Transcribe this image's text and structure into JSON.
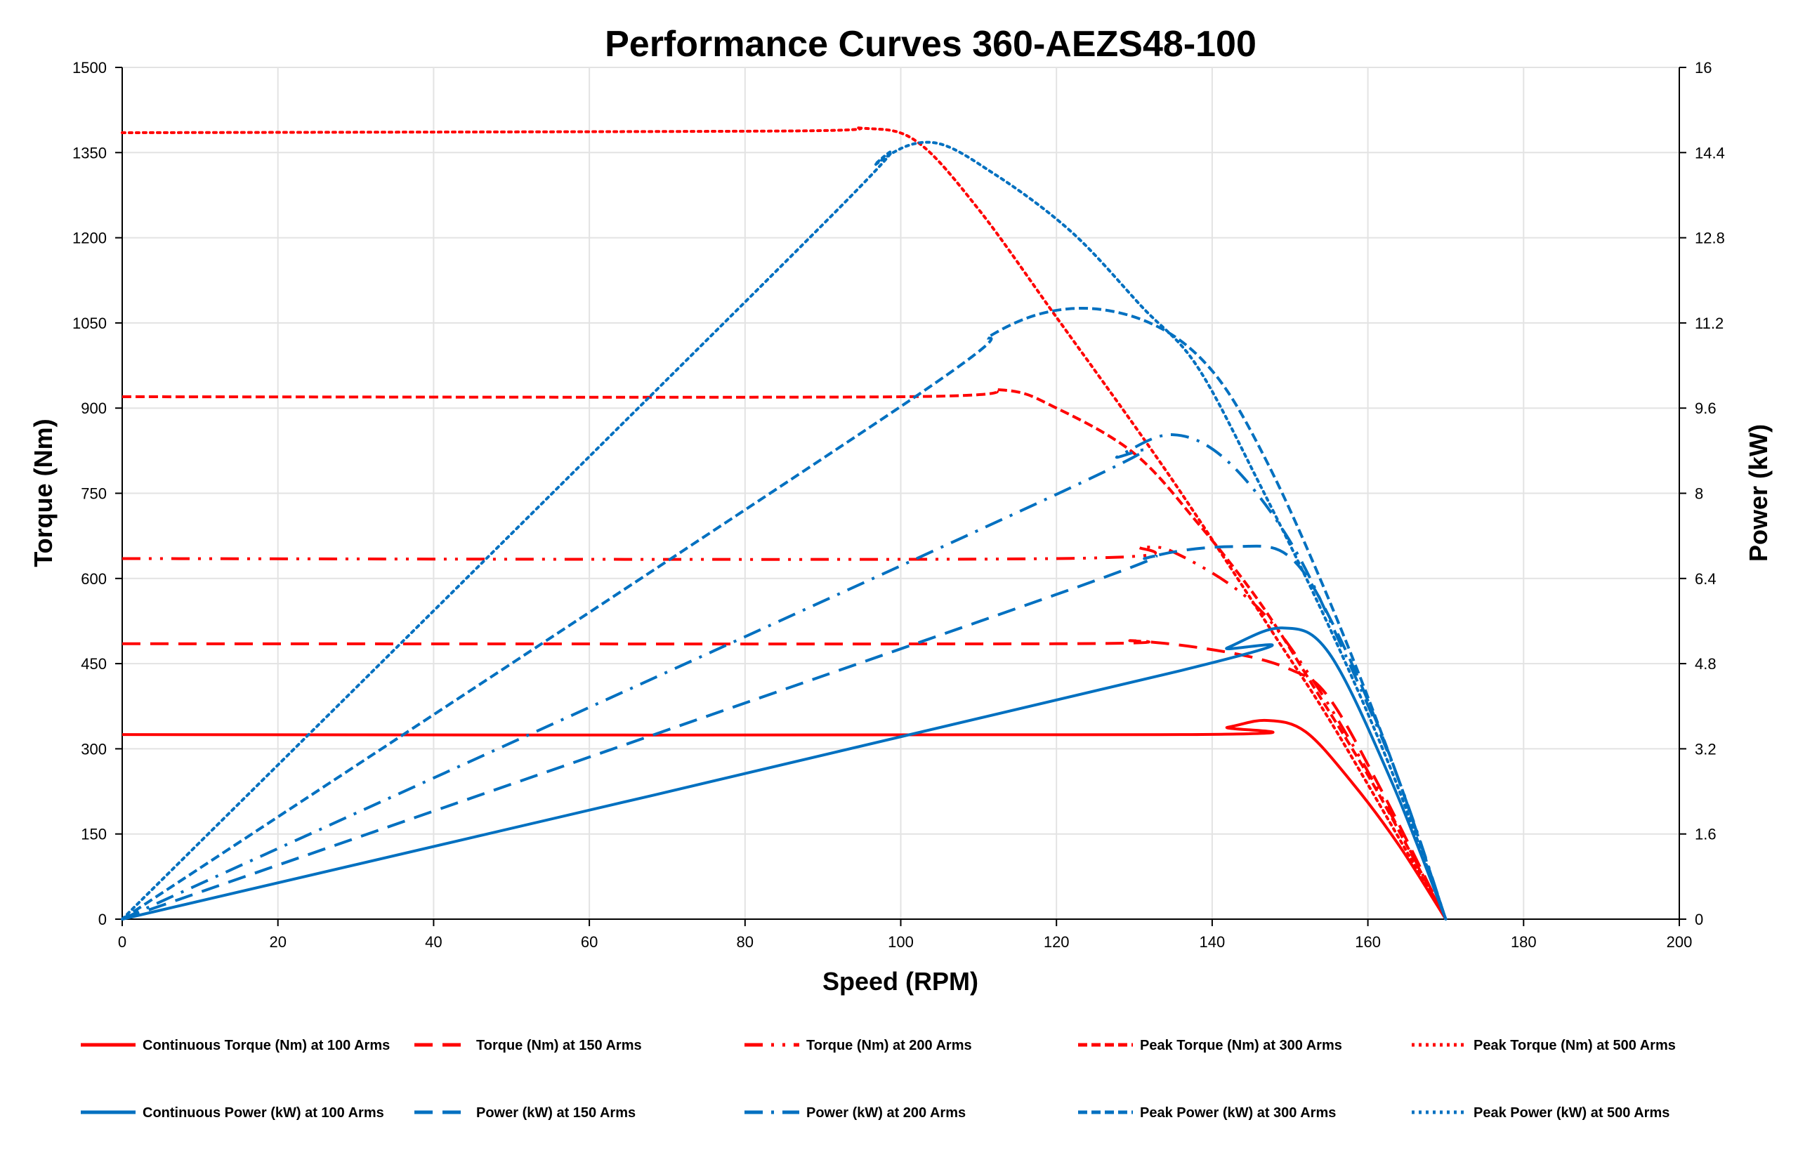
{
  "chart_data": {
    "type": "line",
    "title": "Performance Curves 360-AEZS48-100",
    "xlabel": "Speed (RPM)",
    "ylabel": "Torque (Nm)",
    "y2label": "Power (kW)",
    "xlim": [
      0,
      200
    ],
    "ylim": [
      0,
      1500
    ],
    "y2lim": [
      0,
      16
    ],
    "xticks": [
      0,
      20,
      40,
      60,
      80,
      100,
      120,
      140,
      160,
      180,
      200
    ],
    "yticks": [
      0,
      150,
      300,
      450,
      600,
      750,
      900,
      1050,
      1200,
      1350,
      1500
    ],
    "y2ticks": [
      "0",
      "1.6",
      "3.2",
      "4.8",
      "6.4",
      "8",
      "9.6",
      "11.2",
      "12.8",
      "14.4",
      "16"
    ],
    "grid": true,
    "legend_position": "bottom",
    "colors": {
      "torque": "#ff0000",
      "power": "#0070c0"
    },
    "series": [
      {
        "name": "Continuous Torque (Nm) at 100 Arms",
        "axis": "left",
        "color": "#ff0000",
        "style": "solid",
        "points": [
          [
            0,
            325
          ],
          [
            136,
            325
          ],
          [
            142,
            338
          ],
          [
            147,
            350
          ],
          [
            152,
            330
          ],
          [
            158,
            240
          ],
          [
            164,
            130
          ],
          [
            170,
            0
          ]
        ]
      },
      {
        "name": "Torque (Nm) at 150 Arms",
        "axis": "left",
        "color": "#ff0000",
        "style": "long-dash",
        "points": [
          [
            0,
            485
          ],
          [
            120,
            485
          ],
          [
            130,
            490
          ],
          [
            142,
            470
          ],
          [
            150,
            440
          ],
          [
            155,
            390
          ],
          [
            162,
            220
          ],
          [
            170,
            0
          ]
        ]
      },
      {
        "name": "Torque (Nm) at 200 Arms",
        "axis": "left",
        "color": "#ff0000",
        "style": "dash-dot-dot",
        "points": [
          [
            0,
            635
          ],
          [
            120,
            635
          ],
          [
            131,
            655
          ],
          [
            136,
            640
          ],
          [
            145,
            560
          ],
          [
            152,
            440
          ],
          [
            160,
            260
          ],
          [
            170,
            0
          ]
        ]
      },
      {
        "name": "Peak Torque (Nm) at 300 Arms",
        "axis": "left",
        "color": "#ff0000",
        "style": "short-dash",
        "points": [
          [
            0,
            920
          ],
          [
            100,
            920
          ],
          [
            113,
            932
          ],
          [
            120,
            900
          ],
          [
            130,
            820
          ],
          [
            138,
            700
          ],
          [
            146,
            560
          ],
          [
            153,
            410
          ],
          [
            161,
            230
          ],
          [
            170,
            0
          ]
        ]
      },
      {
        "name": "Peak Torque (Nm) at 500 Arms",
        "axis": "left",
        "color": "#ff0000",
        "style": "dotted",
        "points": [
          [
            0,
            1385
          ],
          [
            85,
            1388
          ],
          [
            95,
            1393
          ],
          [
            102,
            1370
          ],
          [
            110,
            1250
          ],
          [
            120,
            1060
          ],
          [
            131,
            850
          ],
          [
            138,
            710
          ],
          [
            148,
            500
          ],
          [
            156,
            330
          ],
          [
            170,
            0
          ]
        ]
      },
      {
        "name": "Continuous Power (kW) at 100 Arms",
        "axis": "right",
        "color": "#0070c0",
        "style": "solid",
        "points": [
          [
            0,
            0
          ],
          [
            136,
            4.67
          ],
          [
            142,
            5.1
          ],
          [
            149,
            5.47
          ],
          [
            155,
            5.0
          ],
          [
            163,
            2.6
          ],
          [
            170,
            0
          ]
        ]
      },
      {
        "name": "Power (kW) at 150 Arms",
        "axis": "right",
        "color": "#0070c0",
        "style": "long-dash",
        "points": [
          [
            0,
            0
          ],
          [
            120,
            6.1
          ],
          [
            132,
            6.8
          ],
          [
            143,
            7.0
          ],
          [
            150,
            6.8
          ],
          [
            156,
            5.4
          ],
          [
            163,
            3.0
          ],
          [
            170,
            0
          ]
        ]
      },
      {
        "name": "Power (kW) at 200 Arms",
        "axis": "right",
        "color": "#0070c0",
        "style": "dash-dot",
        "points": [
          [
            0,
            0
          ],
          [
            120,
            7.98
          ],
          [
            128,
            8.7
          ],
          [
            135,
            9.1
          ],
          [
            142,
            8.6
          ],
          [
            150,
            7.1
          ],
          [
            157,
            5.0
          ],
          [
            164,
            2.6
          ],
          [
            170,
            0
          ]
        ]
      },
      {
        "name": "Peak Power (kW) at 300 Arms",
        "axis": "right",
        "color": "#0070c0",
        "style": "short-dash",
        "points": [
          [
            0,
            0
          ],
          [
            100,
            9.63
          ],
          [
            112,
            11.0
          ],
          [
            122,
            11.47
          ],
          [
            132,
            11.2
          ],
          [
            140,
            10.3
          ],
          [
            147,
            8.6
          ],
          [
            155,
            6.0
          ],
          [
            163,
            3.0
          ],
          [
            170,
            0
          ]
        ]
      },
      {
        "name": "Peak Power (kW) at 500 Arms",
        "axis": "right",
        "color": "#0070c0",
        "style": "dotted",
        "points": [
          [
            0,
            0
          ],
          [
            90,
            13.05
          ],
          [
            97,
            14.2
          ],
          [
            104,
            14.59
          ],
          [
            112,
            14.0
          ],
          [
            122,
            12.9
          ],
          [
            131,
            11.5
          ],
          [
            138,
            10.4
          ],
          [
            146,
            8.2
          ],
          [
            155,
            5.5
          ],
          [
            163,
            2.8
          ],
          [
            170,
            0
          ]
        ]
      }
    ]
  }
}
